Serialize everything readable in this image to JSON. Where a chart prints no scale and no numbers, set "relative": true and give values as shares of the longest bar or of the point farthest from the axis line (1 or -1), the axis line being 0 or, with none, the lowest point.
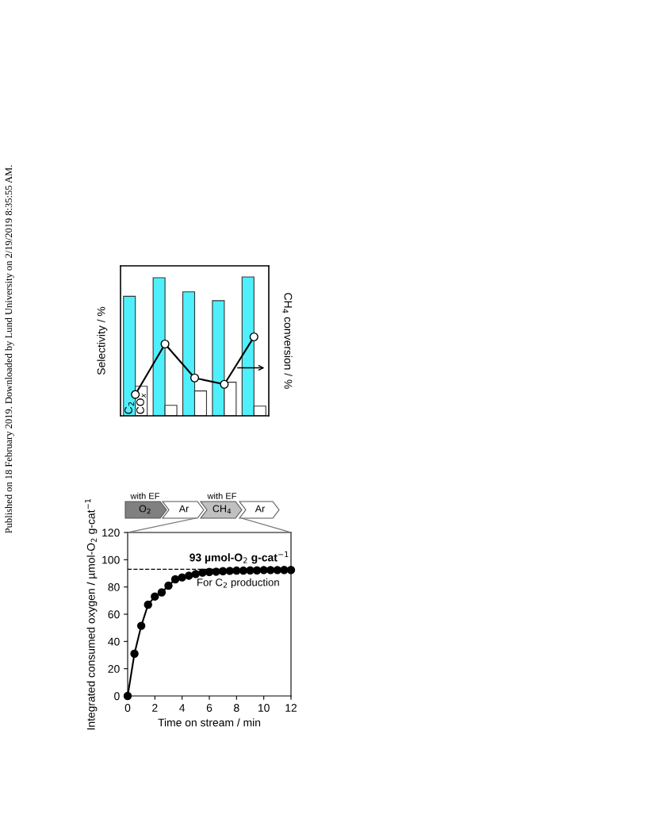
{
  "chart_data": [
    {
      "type": "bar",
      "relative": true,
      "categories": [
        null,
        null,
        null,
        null,
        null
      ],
      "ylabel": "Selectivity / %",
      "grid": false,
      "series": [
        {
          "name": "C$_{2}$",
          "color": "#4ff0fc",
          "values": [
            0.861,
            0.994,
            0.893,
            0.829,
            1.0
          ]
        },
        {
          "name": "CO$_{x}$",
          "color": "#ffffff",
          "values": [
            0.213,
            0.076,
            0.179,
            0.242,
            0.07
          ]
        }
      ],
      "annotations": [
        "Published on 18 February 2019. Downloaded by Lund University on 2/19/2019 8:35:55 AM."
      ]
    },
    {
      "type": "line",
      "relative": true,
      "categories": [
        null,
        null,
        null,
        null,
        null
      ],
      "ylabel": "CH$_{4}$ conversion / %",
      "grid": false,
      "marker": "circle",
      "line_style": "solid",
      "series": [
        {
          "color": "#000000",
          "values": [
            0.27,
            0.91,
            0.48,
            0.4,
            1.0
          ]
        }
      ]
    },
    {
      "type": "line",
      "xlabel": "Time on stream / min",
      "ylabel": "Integrated consumed oxygen / µmol-O$_{2}$ g-cat$^{−1}$",
      "xlim": [
        0,
        12
      ],
      "xticks": [
        0,
        2,
        4,
        6,
        8,
        10,
        12
      ],
      "ylim": [
        0,
        120
      ],
      "yticks": [
        0,
        20,
        40,
        60,
        80,
        100,
        120
      ],
      "grid": false,
      "marker": "circle",
      "line_style": "solid",
      "x": [
        0,
        0.5,
        1,
        1.5,
        2,
        2.5,
        3,
        3.5,
        4,
        4.5,
        5,
        5.5,
        6,
        6.5,
        7,
        7.5,
        8,
        8.5,
        9,
        9.5,
        10,
        10.5,
        11,
        11.5,
        12
      ],
      "series": [
        {
          "color": "#000000",
          "values": [
            0,
            31,
            51.5,
            67,
            73,
            76,
            81,
            85.6,
            87,
            88.3,
            89.5,
            90.5,
            91,
            91.2,
            91.6,
            91.8,
            92,
            92,
            92.2,
            92.2,
            92.4,
            92.4,
            92.4,
            92.5,
            92.5
          ]
        }
      ],
      "ref_lines": [
        {
          "axis": "y",
          "value": 93,
          "color": "#000000",
          "line_style": "dashed"
        }
      ],
      "annotations": [
        "with EF",
        "O$_{2}$",
        "Ar",
        "with EF",
        "CH$_{4}$",
        "Ar",
        {
          "text": "93 µmol-O$_{2}$ g-cat$^{−1}$",
          "x": 8.2,
          "y": 93
        },
        "For C$_{2}$ production"
      ]
    }
  ]
}
